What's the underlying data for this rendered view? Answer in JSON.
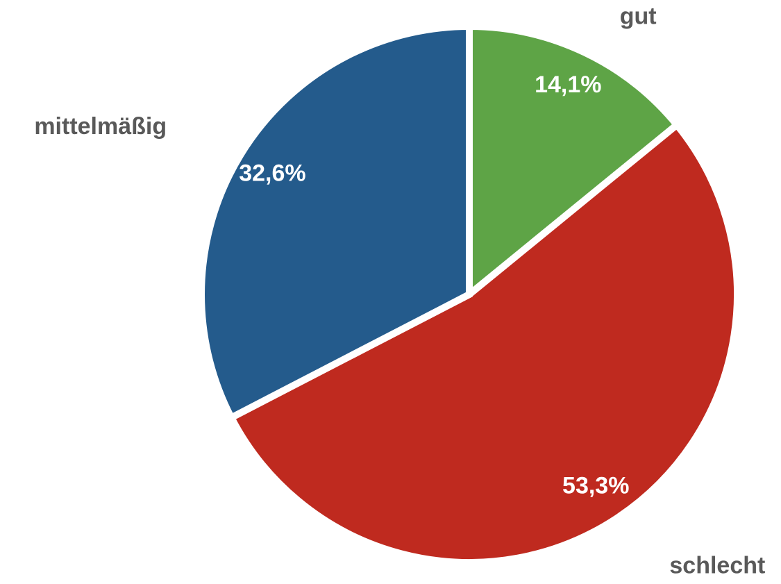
{
  "chart_data": {
    "type": "pie",
    "categories": [
      "gut",
      "schlecht",
      "mittelmäßig"
    ],
    "values": [
      14.1,
      53.3,
      32.6
    ],
    "value_labels": [
      "14,1%",
      "53,3%",
      "32,6%"
    ],
    "colors": [
      "#5ea446",
      "#bf2a1f",
      "#245b8c"
    ]
  }
}
